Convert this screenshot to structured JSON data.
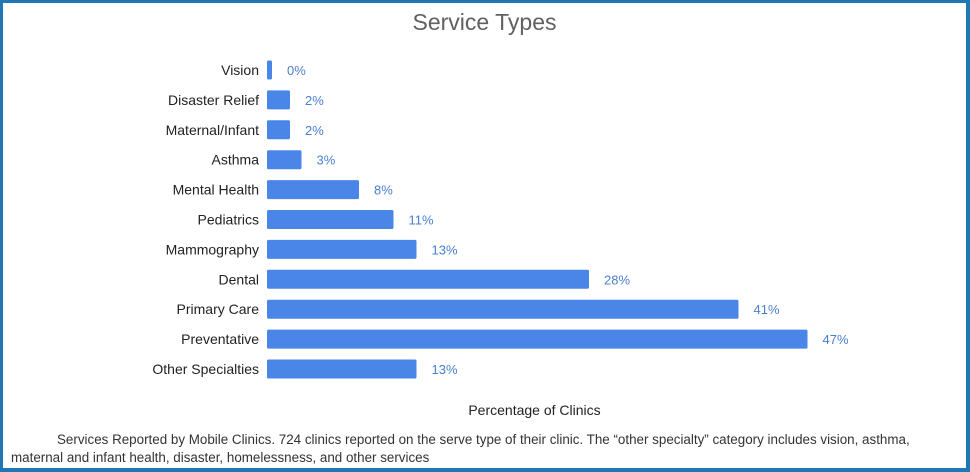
{
  "chart_data": {
    "type": "bar",
    "orientation": "horizontal",
    "title": "Service Types",
    "xlabel": "Percentage of Clinics",
    "ylabel": "",
    "categories": [
      "Vision",
      "Disaster Relief",
      "Maternal/Infant",
      "Asthma",
      "Mental Health",
      "Pediatrics",
      "Mammography",
      "Dental",
      "Primary Care",
      "Preventative",
      "Other Specialties"
    ],
    "values": [
      0,
      2,
      2,
      3,
      8,
      11,
      13,
      28,
      41,
      47,
      13
    ],
    "value_labels": [
      "0%",
      "2%",
      "2%",
      "3%",
      "8%",
      "11%",
      "13%",
      "28%",
      "41%",
      "47%",
      "13%"
    ],
    "xlim": [
      0,
      47
    ],
    "grid": false,
    "legend": "none",
    "colors": {
      "bar": "#4a86e8",
      "value_label": "#4a7fd0",
      "frame": "#1f77b4"
    }
  },
  "caption": "Services Reported by Mobile Clinics. 724 clinics reported on the serve type of their clinic. The “other specialty” category includes vision, asthma, maternal and infant health, disaster, homelessness, and other services"
}
